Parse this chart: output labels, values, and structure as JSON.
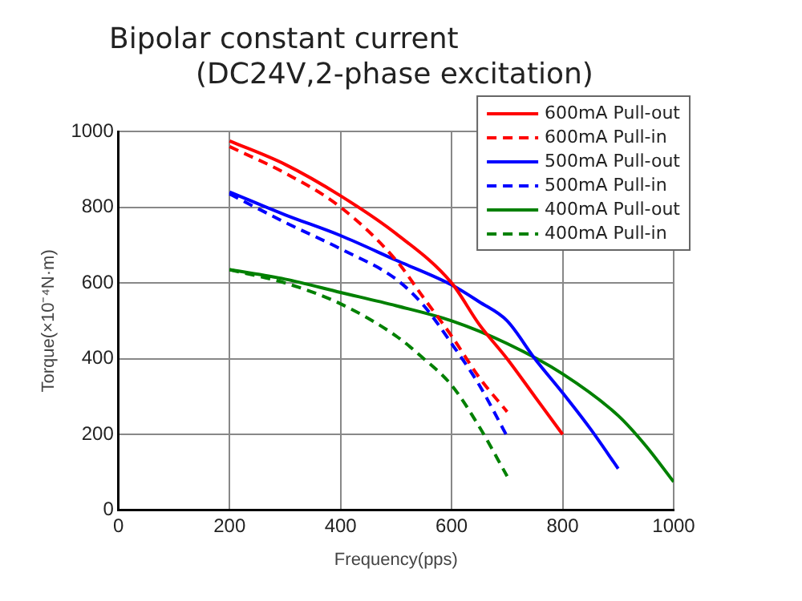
{
  "chart_data": {
    "type": "line",
    "title": "Bipolar constant current",
    "subtitle": "(DC24V,2-phase excitation)",
    "xlabel": "Frequency(pps)",
    "ylabel": "Torque(×10⁻⁴N·m)",
    "xlim": [
      0,
      1000
    ],
    "xticks": [
      0,
      200,
      400,
      600,
      800,
      1000
    ],
    "ylim": [
      0,
      1000
    ],
    "yticks": [
      0,
      200,
      400,
      600,
      800,
      1000
    ],
    "grid": true,
    "legend": "top right",
    "marker": "none",
    "series": [
      {
        "name": "600mA Pull-out",
        "color": "#ff0000",
        "line_style": "solid",
        "x": [
          200,
          300,
          400,
          500,
          600,
          650,
          700,
          750,
          800
        ],
        "values": [
          975,
          913,
          830,
          730,
          600,
          490,
          400,
          300,
          200
        ]
      },
      {
        "name": "600mA Pull-in",
        "color": "#ff0000",
        "line_style": "dashed",
        "x": [
          200,
          300,
          400,
          500,
          550,
          600,
          650,
          700
        ],
        "values": [
          960,
          890,
          800,
          660,
          560,
          460,
          350,
          260
        ]
      },
      {
        "name": "500mA Pull-out",
        "color": "#0000ff",
        "line_style": "solid",
        "x": [
          200,
          300,
          400,
          500,
          600,
          650,
          700,
          750,
          800,
          850,
          900
        ],
        "values": [
          840,
          780,
          725,
          660,
          595,
          550,
          500,
          400,
          310,
          215,
          110
        ]
      },
      {
        "name": "500mA Pull-in",
        "color": "#0000ff",
        "line_style": "dashed",
        "x": [
          200,
          300,
          400,
          500,
          550,
          600,
          650,
          700
        ],
        "values": [
          835,
          760,
          690,
          610,
          540,
          440,
          330,
          195
        ]
      },
      {
        "name": "400mA Pull-out",
        "color": "#008000",
        "line_style": "solid",
        "x": [
          200,
          300,
          400,
          500,
          600,
          700,
          800,
          900,
          950,
          1000
        ],
        "values": [
          635,
          610,
          575,
          540,
          500,
          440,
          360,
          250,
          170,
          75
        ]
      },
      {
        "name": "400mA Pull-in",
        "color": "#008000",
        "line_style": "dashed",
        "x": [
          200,
          300,
          400,
          500,
          550,
          600,
          650,
          700
        ],
        "values": [
          635,
          600,
          545,
          460,
          400,
          330,
          220,
          90
        ]
      }
    ]
  }
}
